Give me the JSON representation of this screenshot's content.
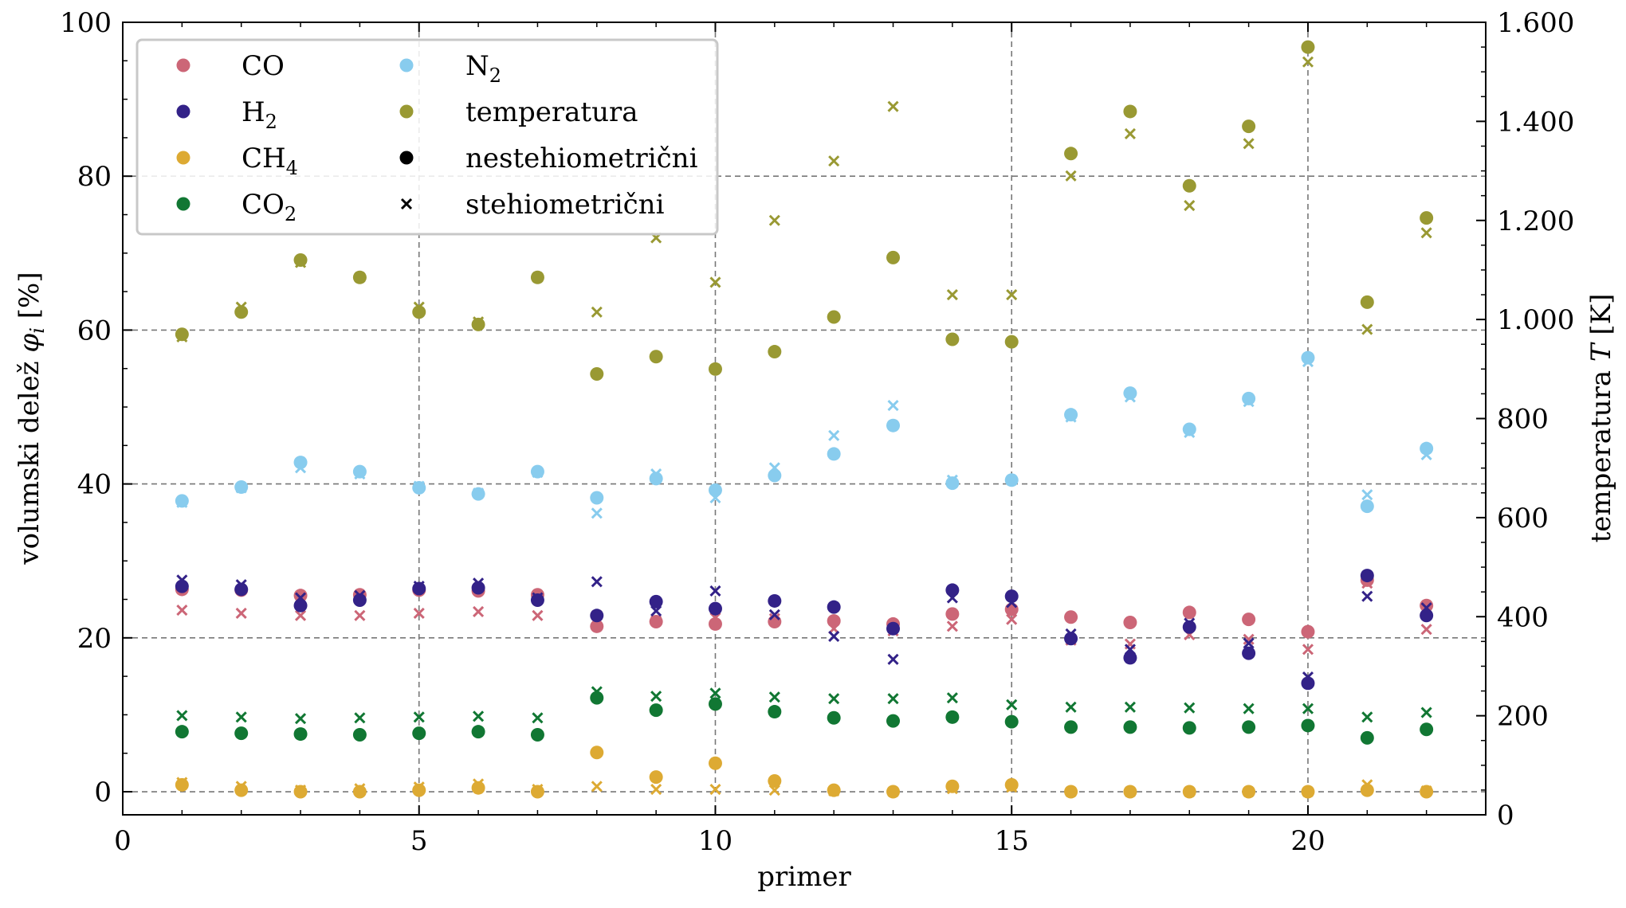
{
  "chart_data": {
    "type": "scatter",
    "xlabel": "primer",
    "ylabel": "volumski delež φ_i [%]",
    "ylabel_right": "temperatura T [K]",
    "xlim": [
      0,
      23
    ],
    "ylim": [
      -3,
      100
    ],
    "ylim_right": [
      0,
      1600
    ],
    "xticks": [
      0,
      5,
      10,
      15,
      20
    ],
    "yticks": [
      0,
      20,
      40,
      60,
      80,
      100
    ],
    "yticks_right": [
      {
        "value": 0,
        "label": "0"
      },
      {
        "value": 200,
        "label": "200"
      },
      {
        "value": 400,
        "label": "400"
      },
      {
        "value": 600,
        "label": "600"
      },
      {
        "value": 800,
        "label": "800"
      },
      {
        "value": 1000,
        "label": "1.000"
      },
      {
        "value": 1200,
        "label": "1.200"
      },
      {
        "value": 1400,
        "label": "1.400"
      },
      {
        "value": 1600,
        "label": "1.600"
      }
    ],
    "grid": true,
    "legend_position": "top-left",
    "x": [
      1,
      2,
      3,
      4,
      5,
      6,
      7,
      8,
      9,
      10,
      11,
      12,
      13,
      14,
      15,
      16,
      17,
      18,
      19,
      20,
      21,
      22
    ],
    "series": [
      {
        "name": "CO",
        "color": "#CC6677",
        "axis": "left",
        "nestehiometricni": [
          26.3,
          26.2,
          25.5,
          25.6,
          26.2,
          26.1,
          25.6,
          21.5,
          22.1,
          21.8,
          22.1,
          22.2,
          21.8,
          23.1,
          23.7,
          22.7,
          22.0,
          23.3,
          22.4,
          20.8,
          27.5,
          24.2
        ],
        "stehiometricni": [
          23.6,
          23.2,
          22.9,
          22.9,
          23.2,
          23.4,
          22.9,
          22.9,
          22.2,
          22.6,
          22.5,
          21.2,
          20.9,
          21.5,
          22.4,
          19.7,
          19.2,
          20.4,
          19.8,
          18.5,
          27.1,
          21.1
        ]
      },
      {
        "name": "H₂",
        "color": "#332288",
        "axis": "left",
        "nestehiometricni": [
          26.7,
          26.3,
          24.2,
          24.9,
          26.4,
          26.5,
          24.9,
          22.9,
          24.7,
          23.8,
          24.8,
          24.0,
          21.2,
          26.2,
          25.4,
          19.9,
          17.4,
          21.4,
          18.0,
          14.1,
          28.1,
          22.9
        ],
        "stehiometricni": [
          27.5,
          26.9,
          25.2,
          25.5,
          26.7,
          27.1,
          25.2,
          27.3,
          23.5,
          26.1,
          23.0,
          20.2,
          17.2,
          25.2,
          24.6,
          20.5,
          18.5,
          21.9,
          19.3,
          14.9,
          25.4,
          23.9
        ]
      },
      {
        "name": "CH₄",
        "color": "#DDAA33",
        "axis": "left",
        "nestehiometricni": [
          0.9,
          0.2,
          0.0,
          0.0,
          0.2,
          0.5,
          0.0,
          5.1,
          1.9,
          3.7,
          1.4,
          0.2,
          0.0,
          0.7,
          0.9,
          0.0,
          0.0,
          0.0,
          0.0,
          0.0,
          0.2,
          0.0
        ],
        "stehiometricni": [
          1.2,
          0.7,
          0.2,
          0.4,
          0.6,
          1.0,
          0.3,
          0.7,
          0.3,
          0.3,
          0.2,
          0.1,
          0.0,
          0.4,
          0.6,
          0.0,
          0.0,
          0.0,
          0.0,
          0.0,
          0.9,
          0.1
        ]
      },
      {
        "name": "CO₂",
        "color": "#117733",
        "axis": "left",
        "nestehiometricni": [
          7.8,
          7.6,
          7.5,
          7.4,
          7.6,
          7.8,
          7.4,
          12.2,
          10.6,
          11.4,
          10.4,
          9.6,
          9.2,
          9.7,
          9.1,
          8.4,
          8.4,
          8.3,
          8.4,
          8.6,
          7.0,
          8.1
        ],
        "stehiometricni": [
          9.9,
          9.7,
          9.5,
          9.6,
          9.7,
          9.8,
          9.6,
          13.0,
          12.4,
          12.8,
          12.3,
          12.1,
          12.1,
          12.2,
          11.3,
          11.0,
          11.0,
          10.9,
          10.8,
          10.8,
          9.7,
          10.3
        ]
      },
      {
        "name": "N₂",
        "color": "#88CCEE",
        "axis": "left",
        "nestehiometricni": [
          37.8,
          39.6,
          42.8,
          41.6,
          39.5,
          38.7,
          41.6,
          38.2,
          40.7,
          39.2,
          41.1,
          43.9,
          47.6,
          40.1,
          40.5,
          49.0,
          51.8,
          47.1,
          51.1,
          56.4,
          37.1,
          44.6
        ],
        "stehiometricni": [
          37.6,
          39.5,
          42.1,
          41.3,
          39.7,
          38.8,
          41.5,
          36.2,
          41.3,
          38.2,
          42.1,
          46.3,
          50.2,
          40.5,
          40.5,
          48.7,
          51.3,
          46.7,
          50.7,
          55.9,
          38.6,
          43.8
        ]
      },
      {
        "name": "temperatura",
        "color": "#999933",
        "axis": "right",
        "nestehiometricni": [
          970,
          1015,
          1120,
          1085,
          1015,
          990,
          1085,
          890,
          925,
          900,
          935,
          1005,
          1125,
          960,
          955,
          1335,
          1420,
          1270,
          1390,
          1550,
          1035,
          1205
        ],
        "stehiometricni": [
          965,
          1025,
          1115,
          1085,
          1025,
          995,
          1085,
          1015,
          1165,
          1075,
          1200,
          1320,
          1430,
          1050,
          1050,
          1290,
          1375,
          1230,
          1355,
          1520,
          980,
          1175
        ]
      }
    ],
    "legend": {
      "entries": [
        {
          "label": "CO",
          "sub": "",
          "marker": "dot",
          "color": "#CC6677"
        },
        {
          "label": "H",
          "sub": "2",
          "marker": "dot",
          "color": "#332288"
        },
        {
          "label": "CH",
          "sub": "4",
          "marker": "dot",
          "color": "#DDAA33"
        },
        {
          "label": "CO",
          "sub": "2",
          "marker": "dot",
          "color": "#117733"
        },
        {
          "label": "N",
          "sub": "2",
          "marker": "dot",
          "color": "#88CCEE"
        },
        {
          "label": "temperatura",
          "sub": "",
          "marker": "dot",
          "color": "#999933"
        },
        {
          "label": "nestehiometrični",
          "sub": "",
          "marker": "dot",
          "color": "#000000"
        },
        {
          "label": "stehiometrični",
          "sub": "",
          "marker": "x",
          "color": "#000000"
        }
      ]
    }
  }
}
